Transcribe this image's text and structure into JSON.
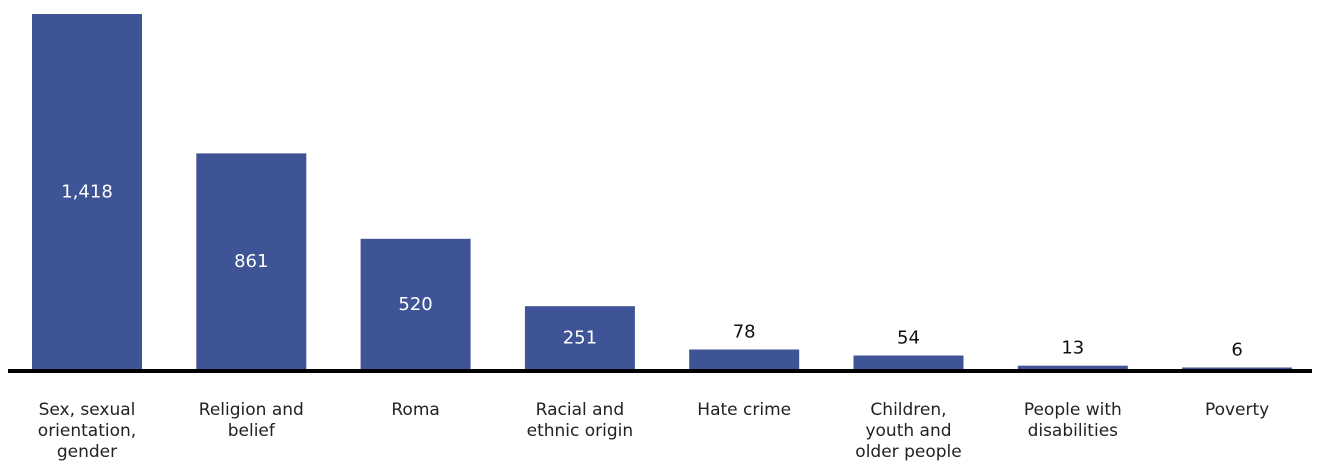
{
  "chart_data": {
    "type": "bar",
    "categories": [
      "Sex, sexual orientation, gender",
      "Religion and belief",
      "Roma",
      "Racial and ethnic origin",
      "Hate crime",
      "Children, youth and older people",
      "People with disabilities",
      "Poverty"
    ],
    "category_lines": [
      [
        "Sex, sexual",
        "orientation,",
        "gender"
      ],
      [
        "Religion and",
        "belief"
      ],
      [
        "Roma"
      ],
      [
        "Racial and",
        "ethnic origin"
      ],
      [
        "Hate crime"
      ],
      [
        "Children,",
        "youth and",
        "older people"
      ],
      [
        "People with",
        "disabilities"
      ],
      [
        "Poverty"
      ]
    ],
    "values": [
      1418,
      861,
      520,
      251,
      78,
      54,
      13,
      6
    ],
    "value_labels": [
      "1,418",
      "861",
      "520",
      "251",
      "78",
      "54",
      "13",
      "6"
    ],
    "title": "",
    "xlabel": "",
    "ylabel": "",
    "ylim": [
      0,
      1418
    ],
    "grid": false,
    "legend": "none",
    "bar_color": "#3f5496",
    "axis_color": "#000000"
  }
}
